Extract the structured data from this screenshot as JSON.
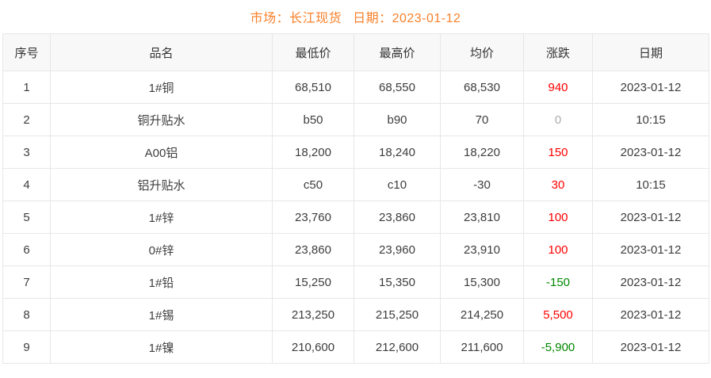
{
  "header": {
    "title_market": "市场：长江现货",
    "title_date": "日期：2023-01-12"
  },
  "table": {
    "columns": [
      "序号",
      "品名",
      "最低价",
      "最高价",
      "均价",
      "涨跌",
      "日期"
    ],
    "rows": [
      {
        "no": "1",
        "name": "1#铜",
        "low": "68,510",
        "high": "68,550",
        "avg": "68,530",
        "change": "940",
        "change_dir": "up",
        "date": "2023-01-12"
      },
      {
        "no": "2",
        "name": "铜升贴水",
        "low": "b50",
        "high": "b90",
        "avg": "70",
        "change": "0",
        "change_dir": "flat",
        "date": "10:15"
      },
      {
        "no": "3",
        "name": "A00铝",
        "low": "18,200",
        "high": "18,240",
        "avg": "18,220",
        "change": "150",
        "change_dir": "up",
        "date": "2023-01-12"
      },
      {
        "no": "4",
        "name": "铝升贴水",
        "low": "c50",
        "high": "c10",
        "avg": "-30",
        "change": "30",
        "change_dir": "up",
        "date": "10:15"
      },
      {
        "no": "5",
        "name": "1#锌",
        "low": "23,760",
        "high": "23,860",
        "avg": "23,810",
        "change": "100",
        "change_dir": "up",
        "date": "2023-01-12"
      },
      {
        "no": "6",
        "name": "0#锌",
        "low": "23,860",
        "high": "23,960",
        "avg": "23,910",
        "change": "100",
        "change_dir": "up",
        "date": "2023-01-12"
      },
      {
        "no": "7",
        "name": "1#铅",
        "low": "15,250",
        "high": "15,350",
        "avg": "15,300",
        "change": "-150",
        "change_dir": "down",
        "date": "2023-01-12"
      },
      {
        "no": "8",
        "name": "1#锡",
        "low": "213,250",
        "high": "215,250",
        "avg": "214,250",
        "change": "5,500",
        "change_dir": "up",
        "date": "2023-01-12"
      },
      {
        "no": "9",
        "name": "1#镍",
        "low": "210,600",
        "high": "212,600",
        "avg": "211,600",
        "change": "-5,900",
        "change_dir": "down",
        "date": "2023-01-12"
      }
    ]
  },
  "colors": {
    "accent_orange": "#F8812B",
    "change_up_red": "#FF0000",
    "change_down_green": "#008800",
    "change_flat_gray": "#AAAAAA",
    "header_bg": "#F8F8F8",
    "border": "#E7E7E7"
  }
}
